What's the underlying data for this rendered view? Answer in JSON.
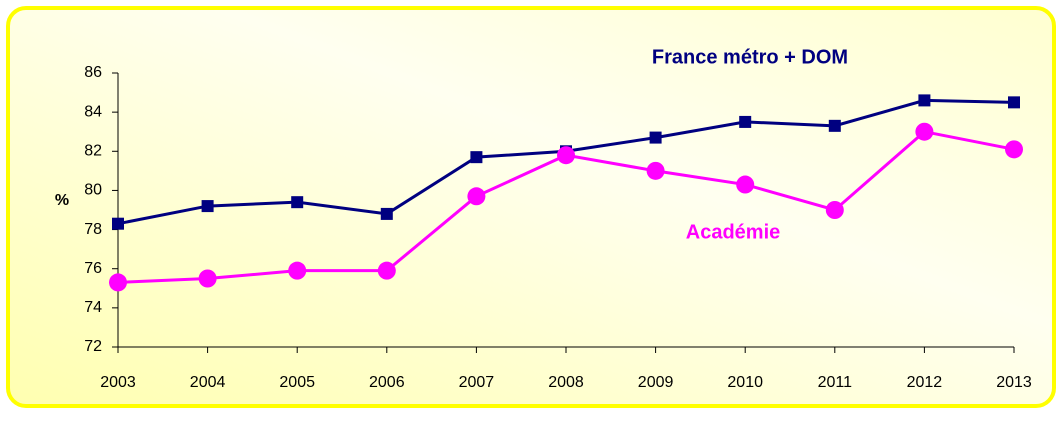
{
  "chart_data": {
    "type": "line",
    "y_label": "%",
    "categories": [
      "2003",
      "2004",
      "2005",
      "2006",
      "2007",
      "2008",
      "2009",
      "2010",
      "2011",
      "2012",
      "2013"
    ],
    "series": [
      {
        "name": "France métro + DOM",
        "color": "#000080",
        "marker": "square",
        "values": [
          78.3,
          79.2,
          79.4,
          78.8,
          81.7,
          82.0,
          82.7,
          83.5,
          83.3,
          84.6,
          84.5
        ]
      },
      {
        "name": "Académie",
        "color": "#ff00ff",
        "marker": "circle",
        "values": [
          75.3,
          75.5,
          75.9,
          75.9,
          79.7,
          81.8,
          81.0,
          80.3,
          79.0,
          83.0,
          82.1
        ]
      }
    ],
    "ylim": [
      72,
      86
    ],
    "yticks": [
      72,
      74,
      76,
      78,
      80,
      82,
      84,
      86
    ],
    "grid": false
  }
}
